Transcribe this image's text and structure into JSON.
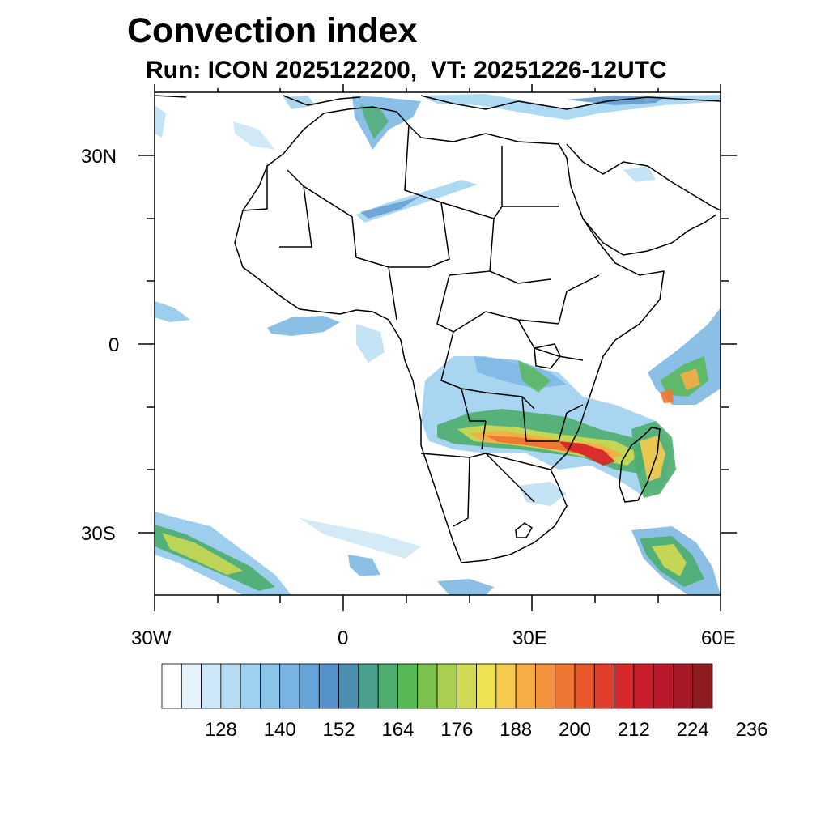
{
  "title": "Convection index",
  "subtitle": "Run: ICON 2025122200,  VT: 20251226-12UTC",
  "map": {
    "lon_range": [
      -30,
      60
    ],
    "lat_range": [
      -40,
      40
    ],
    "lat_labels": [
      "30N",
      "0",
      "30S"
    ],
    "lon_labels": [
      "30W",
      "0",
      "30E",
      "60E"
    ],
    "region": "Africa"
  },
  "colorbar": {
    "colors": [
      "#ffffff",
      "#e6f3fb",
      "#cce7f6",
      "#b5dcf2",
      "#9fd2f0",
      "#8cc5ea",
      "#78b4e2",
      "#66a3d8",
      "#5592cb",
      "#4c8fb0",
      "#4aa08d",
      "#4cad6e",
      "#56b853",
      "#7cc04f",
      "#a9ce50",
      "#d0da52",
      "#efe252",
      "#f7cb4f",
      "#f6ad46",
      "#f4923d",
      "#ef7532",
      "#e9592c",
      "#e13e2b",
      "#d7282b",
      "#c81d2a",
      "#b8182a",
      "#a41828",
      "#8e1b20"
    ],
    "tick_labels": [
      "128",
      "140",
      "152",
      "164",
      "176",
      "188",
      "200",
      "212",
      "224",
      "236"
    ]
  }
}
